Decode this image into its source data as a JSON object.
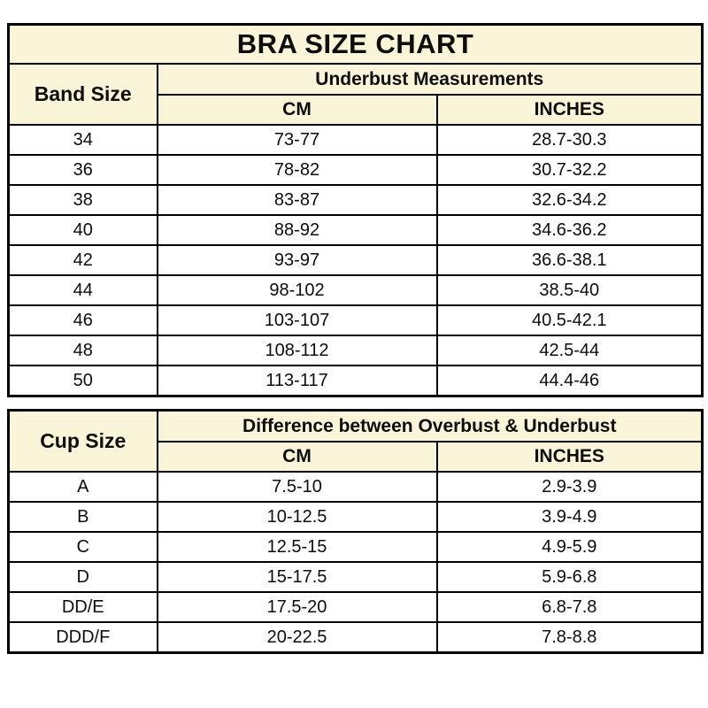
{
  "colors": {
    "header_bg": "#faf5d9",
    "border": "#000000",
    "row_bg": "#ffffff",
    "text": "#0d0d0d"
  },
  "chart_data": [
    {
      "type": "table",
      "title": "BRA SIZE CHART",
      "corner_header": "Band Size",
      "group_header": "Underbust Measurements",
      "columns": [
        "CM",
        "INCHES"
      ],
      "rows": [
        {
          "label": "34",
          "cm": "73-77",
          "inches": "28.7-30.3"
        },
        {
          "label": "36",
          "cm": "78-82",
          "inches": "30.7-32.2"
        },
        {
          "label": "38",
          "cm": "83-87",
          "inches": "32.6-34.2"
        },
        {
          "label": "40",
          "cm": "88-92",
          "inches": "34.6-36.2"
        },
        {
          "label": "42",
          "cm": "93-97",
          "inches": "36.6-38.1"
        },
        {
          "label": "44",
          "cm": "98-102",
          "inches": "38.5-40"
        },
        {
          "label": "46",
          "cm": "103-107",
          "inches": "40.5-42.1"
        },
        {
          "label": "48",
          "cm": "108-112",
          "inches": "42.5-44"
        },
        {
          "label": "50",
          "cm": "113-117",
          "inches": "44.4-46"
        }
      ]
    },
    {
      "type": "table",
      "corner_header": "Cup Size",
      "group_header": "Difference between Overbust & Underbust",
      "columns": [
        "CM",
        "INCHES"
      ],
      "rows": [
        {
          "label": "A",
          "cm": "7.5-10",
          "inches": "2.9-3.9"
        },
        {
          "label": "B",
          "cm": "10-12.5",
          "inches": "3.9-4.9"
        },
        {
          "label": "C",
          "cm": "12.5-15",
          "inches": "4.9-5.9"
        },
        {
          "label": "D",
          "cm": "15-17.5",
          "inches": "5.9-6.8"
        },
        {
          "label": "DD/E",
          "cm": "17.5-20",
          "inches": "6.8-7.8"
        },
        {
          "label": "DDD/F",
          "cm": "20-22.5",
          "inches": "7.8-8.8"
        }
      ]
    }
  ]
}
